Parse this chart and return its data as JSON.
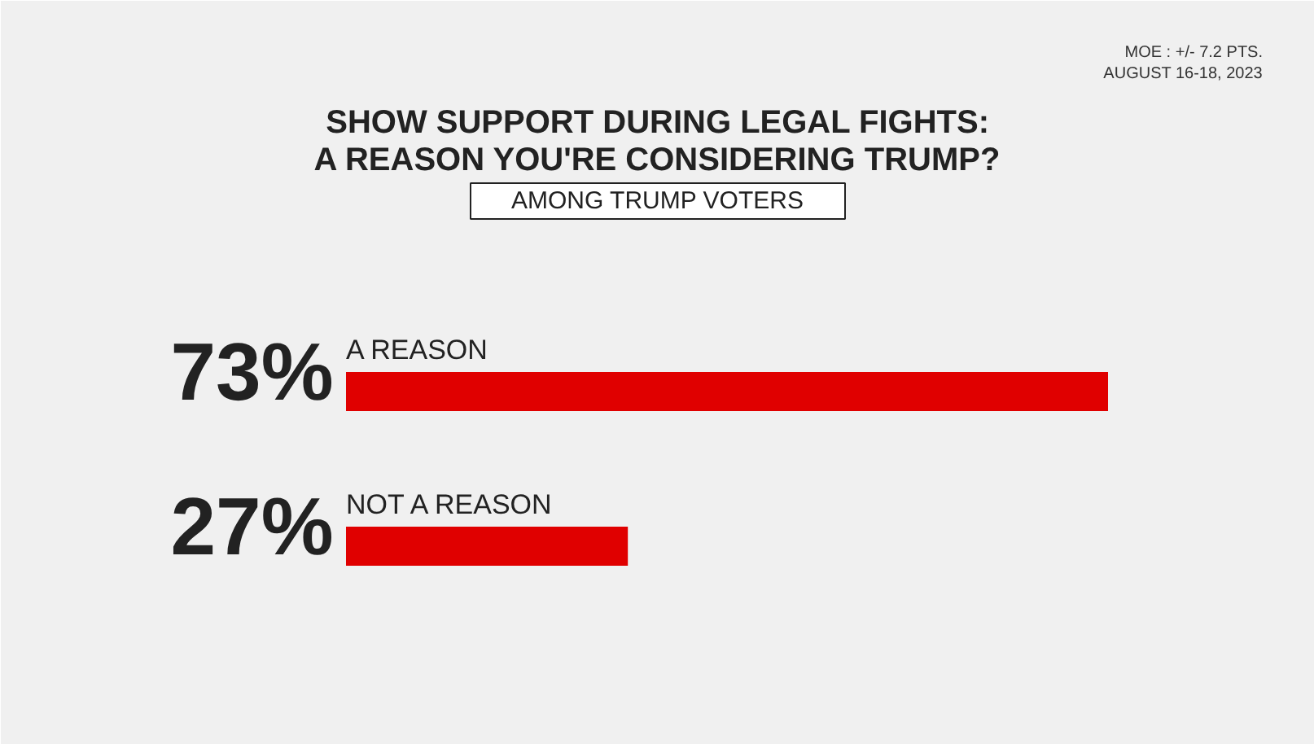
{
  "chart_data": {
    "type": "bar",
    "orientation": "horizontal",
    "title": "SHOW SUPPORT DURING LEGAL FIGHTS:\nA REASON YOU'RE CONSIDERING TRUMP?",
    "subtitle": "AMONG TRUMP VOTERS",
    "categories": [
      "A REASON",
      "NOT A REASON"
    ],
    "values": [
      73,
      27
    ],
    "color": "#e00000",
    "value_labels": [
      "73%",
      "27%"
    ],
    "annotations": [
      "MOE : +/- 7.2 PTS.",
      "AUGUST 16-18, 2023"
    ],
    "grid": false
  }
}
